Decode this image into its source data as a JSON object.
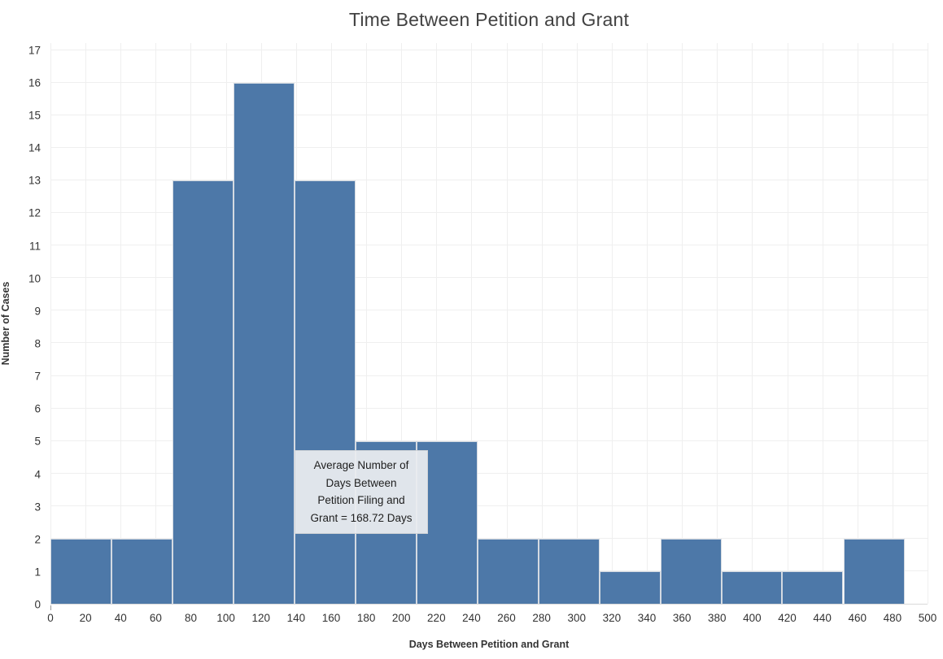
{
  "title": "Time Between Petition and Grant",
  "colors": {
    "bar_fill": "#4d78a8",
    "bar_border": "#d4dae2",
    "gridline": "#efefef",
    "axis_line": "#d9d9d9",
    "title_text": "#424242",
    "tick_text": "#333333",
    "annotation_bg": "#eaecef"
  },
  "chart_data": {
    "type": "bar",
    "subtype": "histogram",
    "title": "Time Between Petition and Grant",
    "xlabel": "Days Between Petition and Grant",
    "ylabel": "Number of Cases",
    "bin_edges": [
      0,
      34.8,
      69.5,
      104.3,
      139.1,
      173.9,
      208.6,
      243.4,
      278.2,
      313.0,
      347.7,
      382.5,
      417.2,
      452.0,
      486.8
    ],
    "counts": [
      2,
      2,
      13,
      16,
      13,
      5,
      5,
      2,
      2,
      1,
      2,
      1,
      1,
      2
    ],
    "xlim": [
      0,
      500
    ],
    "ylim": [
      0,
      17.22
    ],
    "x_ticks": [
      0,
      20,
      40,
      60,
      80,
      100,
      120,
      140,
      160,
      180,
      200,
      220,
      240,
      260,
      280,
      300,
      320,
      340,
      360,
      380,
      400,
      420,
      440,
      460,
      480,
      500
    ],
    "y_ticks": [
      0,
      1,
      2,
      3,
      4,
      5,
      6,
      7,
      8,
      9,
      10,
      11,
      12,
      13,
      14,
      15,
      16,
      17
    ],
    "grid": true,
    "legend": false,
    "annotation": {
      "lines": [
        "Average Number of",
        "Days Between",
        "Petition Filing and",
        "Grant = 168.72 Days"
      ],
      "average_days": 168.72
    }
  }
}
